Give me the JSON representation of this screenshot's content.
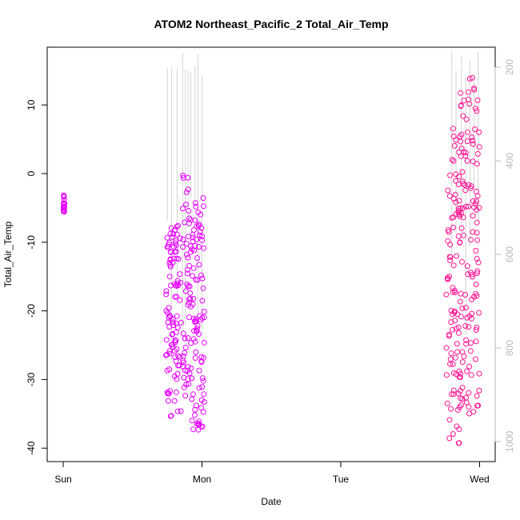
{
  "chart_data": {
    "type": "scatter",
    "title": "ATOM2 Northeast_Pacific_2 Total_Air_Temp",
    "xlabel": "Date",
    "ylabel": "Total_Air_Temp",
    "x_ticks": [
      "Sun",
      "Mon",
      "Tue",
      "Wed"
    ],
    "xlim": [
      0,
      3.1
    ],
    "ylim": [
      -41.5,
      18
    ],
    "y_ticks": [
      -40,
      -30,
      -20,
      -10,
      0,
      10
    ],
    "y2_ticks": [
      200,
      400,
      600,
      800,
      1000
    ],
    "y2lim": [
      1020,
      180
    ],
    "grid": false,
    "legend": "none",
    "marker": "open circle",
    "colors": {
      "early": "#e600ff",
      "late": "#ff1493",
      "secondary_line": "#c8c8c8",
      "axis_secondary": "#b8b8b8"
    },
    "series": [
      {
        "x_range": [
          0,
          0.01
        ],
        "y_range": [
          -5.6,
          -3.0
        ],
        "color": "early"
      },
      {
        "x_range": [
          0.74,
          0.85
        ],
        "y_range": [
          -35.5,
          -7.5
        ],
        "color": "early"
      },
      {
        "x_range": [
          0.86,
          0.92
        ],
        "y_range": [
          -32.5,
          0.0
        ],
        "color": "early"
      },
      {
        "x_range": [
          0.92,
          1.02
        ],
        "y_range": [
          -37.5,
          -3.5
        ],
        "color": "early"
      },
      {
        "x_range": [
          2.76,
          2.86
        ],
        "y_range": [
          -39.8,
          7.0
        ],
        "color": "late"
      },
      {
        "x_range": [
          2.86,
          2.95
        ],
        "y_range": [
          -35.0,
          16.0
        ],
        "color": "late"
      },
      {
        "x_range": [
          2.95,
          3.0
        ],
        "y_range": [
          -36.5,
          13.8
        ],
        "color": "late"
      }
    ]
  }
}
